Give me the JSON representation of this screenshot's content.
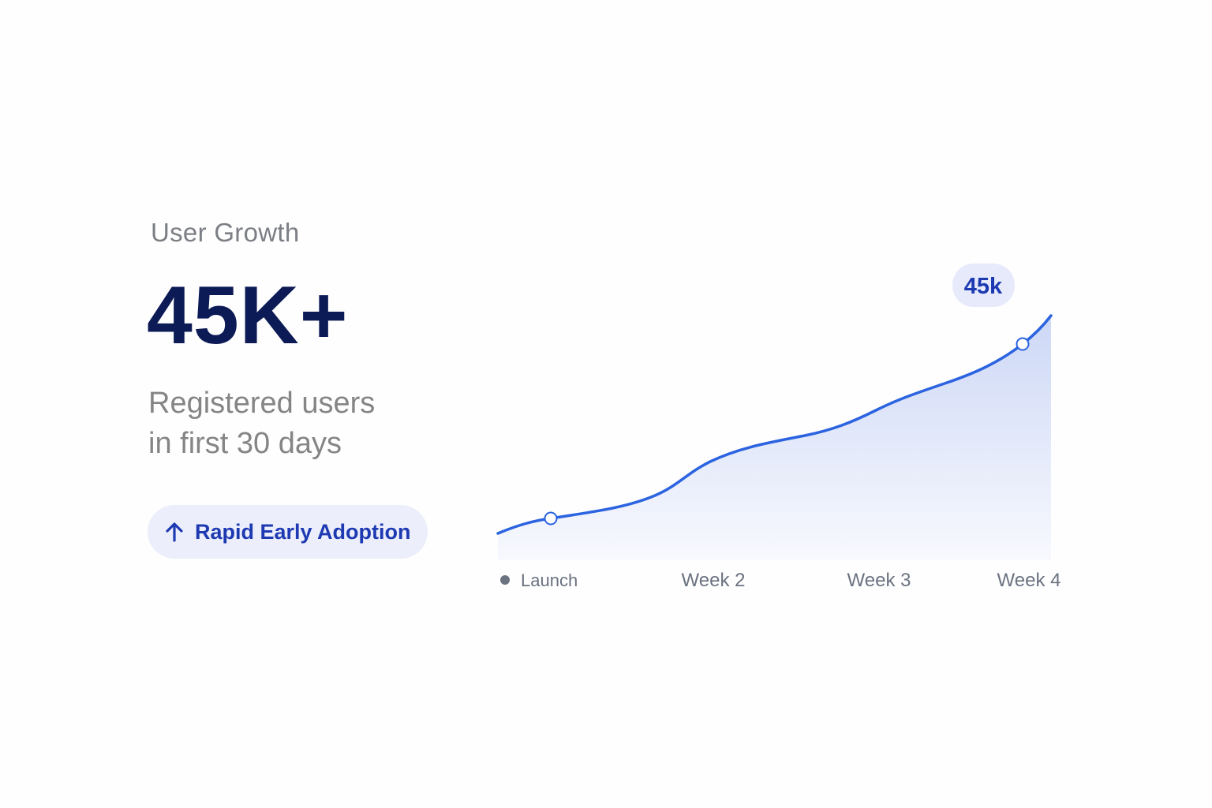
{
  "card": {
    "section_label": "User Growth",
    "headline_value": "45K+",
    "description_lines": [
      "Registered users",
      "in first 30 days"
    ],
    "badge": {
      "icon": "arrow-up-icon",
      "label": "Rapid Early Adoption"
    }
  },
  "colors": {
    "headline": "#0c1a55",
    "accent_line": "#2b63e0",
    "badge_text": "#1d3ab2",
    "badge_bg": "#eceefb",
    "fill_top": "#cdd8f6",
    "fill_bottom": "#f8f9fe"
  },
  "chart_data": {
    "type": "area",
    "categories": [
      "Launch",
      "Week 2",
      "Week 3",
      "Week 4"
    ],
    "legend_marker": "dot",
    "callout": {
      "label": "45k",
      "category": "Week 4"
    },
    "highlighted_points": [
      "Launch",
      "Week 4"
    ],
    "grid": false
  }
}
